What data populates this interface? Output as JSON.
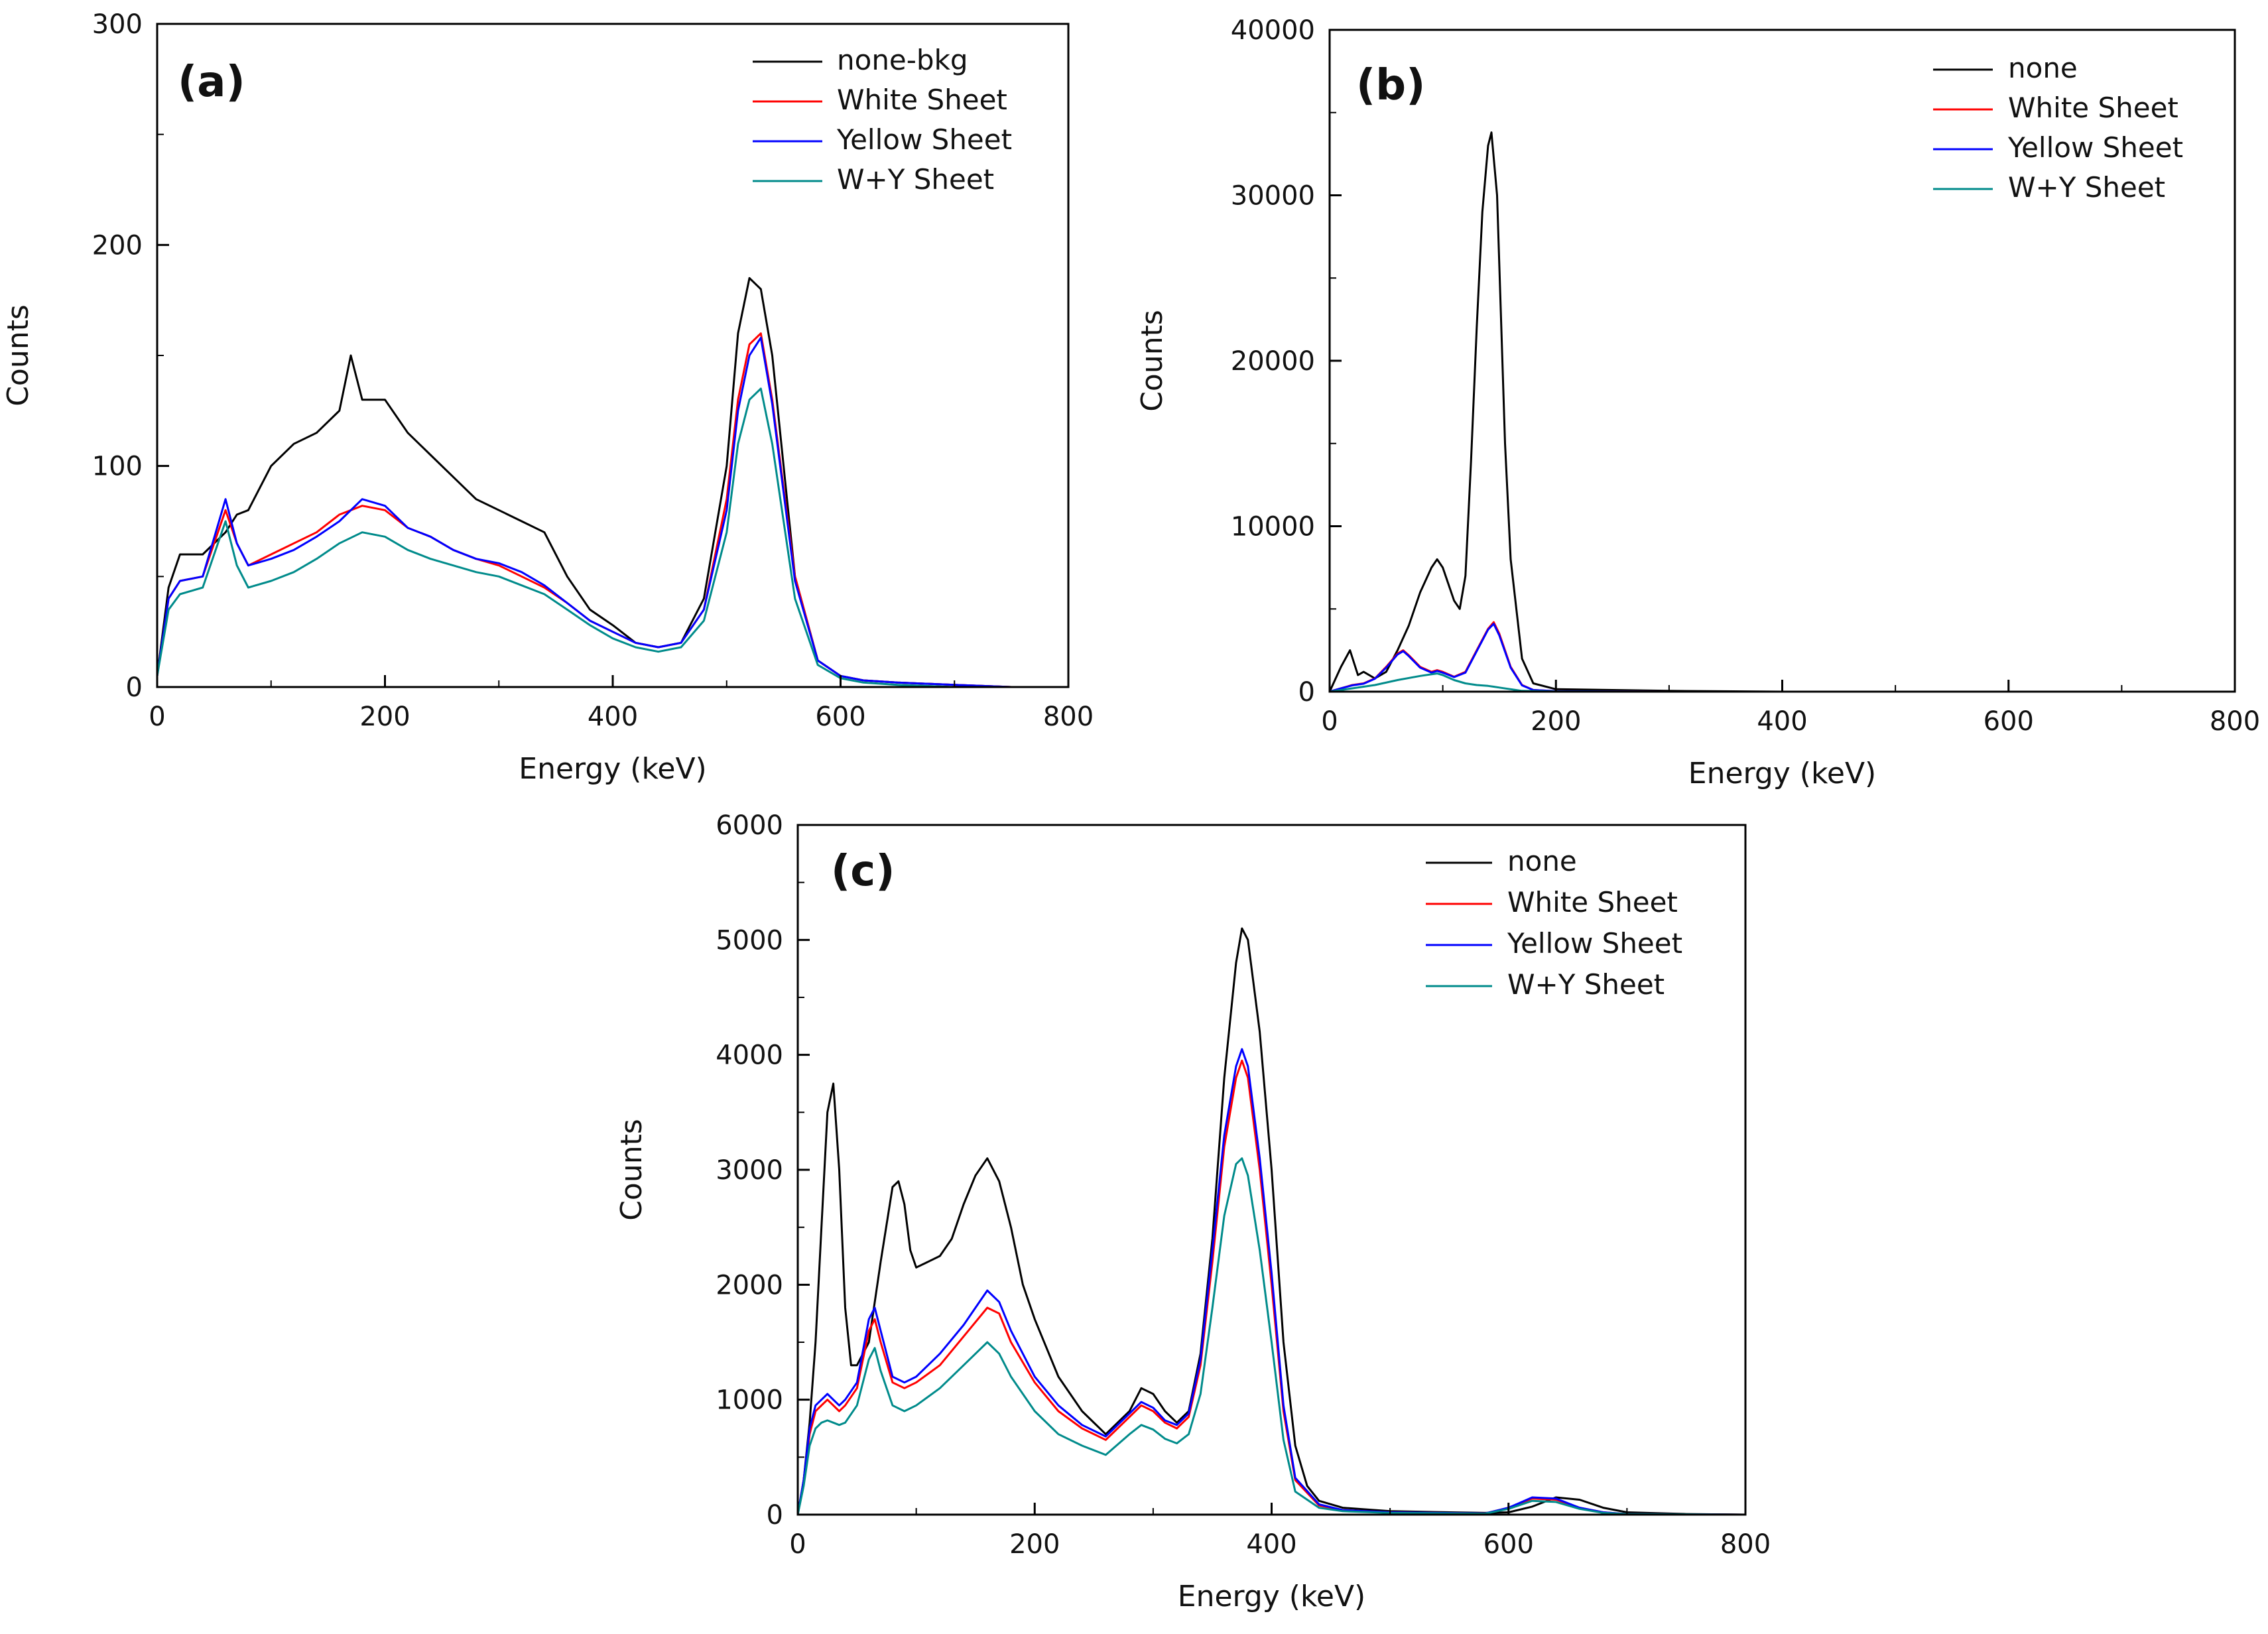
{
  "figure": {
    "series_colors": {
      "none": "#000000",
      "white": "#ff0000",
      "yellow": "#0000ff",
      "wy": "#008b8b"
    }
  },
  "chart_data": [
    {
      "panel": "(a)",
      "type": "line",
      "xlabel": "Energy (keV)",
      "ylabel": "Counts",
      "xlim": [
        0,
        800
      ],
      "ylim": [
        0,
        300
      ],
      "xticks": [
        0,
        200,
        400,
        600,
        800
      ],
      "yticks": [
        0,
        100,
        200,
        300
      ],
      "legend_position": "top-right",
      "series": [
        {
          "name": "none-bkg",
          "color": "#000000",
          "x": [
            0,
            10,
            20,
            40,
            60,
            70,
            80,
            100,
            120,
            140,
            160,
            170,
            180,
            200,
            220,
            240,
            260,
            280,
            300,
            320,
            340,
            360,
            380,
            400,
            420,
            440,
            460,
            480,
            500,
            510,
            520,
            530,
            540,
            550,
            560,
            580,
            600,
            620,
            650,
            700,
            750,
            800
          ],
          "y": [
            5,
            45,
            60,
            60,
            70,
            78,
            80,
            100,
            110,
            115,
            125,
            150,
            130,
            130,
            115,
            105,
            95,
            85,
            80,
            75,
            70,
            50,
            35,
            28,
            20,
            18,
            20,
            40,
            100,
            160,
            185,
            180,
            150,
            100,
            50,
            12,
            5,
            3,
            2,
            1,
            0,
            0
          ]
        },
        {
          "name": "White Sheet",
          "color": "#ff0000",
          "x": [
            0,
            10,
            20,
            40,
            60,
            70,
            80,
            100,
            120,
            140,
            160,
            180,
            200,
            220,
            240,
            260,
            280,
            300,
            320,
            340,
            360,
            380,
            400,
            420,
            440,
            460,
            480,
            500,
            510,
            520,
            530,
            540,
            550,
            560,
            580,
            600,
            620,
            650,
            700,
            750,
            800
          ],
          "y": [
            5,
            40,
            48,
            50,
            80,
            65,
            55,
            60,
            65,
            70,
            78,
            82,
            80,
            72,
            68,
            62,
            58,
            55,
            50,
            45,
            38,
            30,
            25,
            20,
            18,
            20,
            35,
            85,
            130,
            155,
            160,
            130,
            90,
            50,
            12,
            5,
            3,
            2,
            1,
            0,
            0
          ]
        },
        {
          "name": "Yellow Sheet",
          "color": "#0000ff",
          "x": [
            0,
            10,
            20,
            40,
            60,
            70,
            80,
            100,
            120,
            140,
            160,
            180,
            200,
            220,
            240,
            260,
            280,
            300,
            320,
            340,
            360,
            380,
            400,
            420,
            440,
            460,
            480,
            500,
            510,
            520,
            530,
            540,
            550,
            560,
            580,
            600,
            620,
            650,
            700,
            750,
            800
          ],
          "y": [
            5,
            40,
            48,
            50,
            85,
            65,
            55,
            58,
            62,
            68,
            75,
            85,
            82,
            72,
            68,
            62,
            58,
            56,
            52,
            46,
            38,
            30,
            25,
            20,
            18,
            20,
            35,
            80,
            125,
            150,
            158,
            128,
            88,
            48,
            12,
            5,
            3,
            2,
            1,
            0,
            0
          ]
        },
        {
          "name": "W+Y Sheet",
          "color": "#008b8b",
          "x": [
            0,
            10,
            20,
            40,
            60,
            70,
            80,
            100,
            120,
            140,
            160,
            180,
            200,
            220,
            240,
            260,
            280,
            300,
            320,
            340,
            360,
            380,
            400,
            420,
            440,
            460,
            480,
            500,
            510,
            520,
            530,
            540,
            550,
            560,
            580,
            600,
            620,
            650,
            700,
            750,
            800
          ],
          "y": [
            5,
            35,
            42,
            45,
            75,
            55,
            45,
            48,
            52,
            58,
            65,
            70,
            68,
            62,
            58,
            55,
            52,
            50,
            46,
            42,
            35,
            28,
            22,
            18,
            16,
            18,
            30,
            70,
            110,
            130,
            135,
            110,
            75,
            40,
            10,
            4,
            2,
            1,
            0,
            0,
            0
          ]
        }
      ]
    },
    {
      "panel": "(b)",
      "type": "line",
      "xlabel": "Energy (keV)",
      "ylabel": "Counts",
      "xlim": [
        0,
        800
      ],
      "ylim": [
        0,
        40000
      ],
      "xticks": [
        0,
        200,
        400,
        600,
        800
      ],
      "yticks": [
        0,
        10000,
        20000,
        30000,
        40000
      ],
      "legend_position": "top-right",
      "series": [
        {
          "name": "none",
          "color": "#000000",
          "x": [
            0,
            10,
            18,
            25,
            30,
            40,
            50,
            60,
            70,
            80,
            90,
            95,
            100,
            110,
            115,
            120,
            125,
            130,
            135,
            140,
            143,
            148,
            155,
            160,
            170,
            180,
            200,
            250,
            300,
            400,
            500,
            600,
            700,
            800
          ],
          "y": [
            0,
            1500,
            2500,
            1000,
            1200,
            800,
            1200,
            2500,
            4000,
            6000,
            7500,
            8000,
            7500,
            5500,
            5000,
            7000,
            14000,
            22000,
            29000,
            33000,
            33800,
            30000,
            15000,
            8000,
            2000,
            500,
            150,
            100,
            50,
            0,
            0,
            0,
            0,
            0
          ]
        },
        {
          "name": "White Sheet",
          "color": "#ff0000",
          "x": [
            0,
            10,
            20,
            30,
            40,
            50,
            60,
            65,
            70,
            80,
            90,
            95,
            100,
            110,
            120,
            130,
            140,
            145,
            150,
            160,
            170,
            180,
            200,
            300,
            800
          ],
          "y": [
            0,
            200,
            400,
            500,
            800,
            1500,
            2300,
            2500,
            2200,
            1500,
            1200,
            1300,
            1200,
            900,
            1200,
            2500,
            3800,
            4200,
            3500,
            1500,
            400,
            100,
            30,
            0,
            0
          ]
        },
        {
          "name": "Yellow Sheet",
          "color": "#0000ff",
          "x": [
            0,
            10,
            20,
            30,
            40,
            50,
            60,
            65,
            70,
            80,
            90,
            95,
            100,
            110,
            120,
            130,
            140,
            145,
            150,
            160,
            170,
            180,
            200,
            300,
            800
          ],
          "y": [
            0,
            200,
            380,
            480,
            780,
            1450,
            2250,
            2450,
            2150,
            1450,
            1150,
            1250,
            1150,
            880,
            1150,
            2450,
            3750,
            4100,
            3400,
            1450,
            380,
            100,
            30,
            0,
            0
          ]
        },
        {
          "name": "W+Y Sheet",
          "color": "#008b8b",
          "x": [
            0,
            10,
            20,
            40,
            60,
            80,
            90,
            95,
            100,
            110,
            120,
            130,
            140,
            145,
            150,
            160,
            170,
            200,
            300,
            800
          ],
          "y": [
            0,
            100,
            200,
            400,
            700,
            950,
            1050,
            1100,
            1000,
            700,
            500,
            400,
            350,
            300,
            250,
            150,
            50,
            10,
            0,
            0
          ]
        }
      ]
    },
    {
      "panel": "(c)",
      "type": "line",
      "xlabel": "Energy (keV)",
      "ylabel": "Counts",
      "xlim": [
        0,
        800
      ],
      "ylim": [
        0,
        6000
      ],
      "xticks": [
        0,
        200,
        400,
        600,
        800
      ],
      "yticks": [
        0,
        1000,
        2000,
        3000,
        4000,
        5000,
        6000
      ],
      "legend_position": "top-right",
      "series": [
        {
          "name": "none",
          "color": "#000000",
          "x": [
            0,
            5,
            10,
            15,
            20,
            25,
            30,
            35,
            40,
            45,
            50,
            60,
            70,
            80,
            85,
            90,
            95,
            100,
            110,
            120,
            130,
            140,
            150,
            160,
            170,
            180,
            190,
            200,
            220,
            240,
            260,
            280,
            290,
            300,
            310,
            320,
            330,
            340,
            350,
            360,
            370,
            375,
            380,
            390,
            400,
            410,
            420,
            430,
            440,
            460,
            500,
            550,
            580,
            600,
            620,
            640,
            660,
            680,
            700,
            750,
            800
          ],
          "y": [
            0,
            300,
            800,
            1500,
            2500,
            3500,
            3750,
            3000,
            1800,
            1300,
            1300,
            1500,
            2200,
            2850,
            2900,
            2700,
            2300,
            2150,
            2200,
            2250,
            2400,
            2700,
            2950,
            3100,
            2900,
            2500,
            2000,
            1700,
            1200,
            900,
            700,
            900,
            1100,
            1050,
            900,
            800,
            900,
            1400,
            2400,
            3800,
            4800,
            5100,
            5000,
            4200,
            3000,
            1500,
            600,
            250,
            120,
            60,
            30,
            20,
            15,
            20,
            70,
            150,
            130,
            60,
            20,
            5,
            0
          ]
        },
        {
          "name": "White Sheet",
          "color": "#ff0000",
          "x": [
            0,
            5,
            10,
            15,
            20,
            25,
            30,
            35,
            40,
            50,
            60,
            65,
            70,
            80,
            90,
            100,
            120,
            140,
            160,
            170,
            180,
            200,
            220,
            240,
            260,
            280,
            290,
            300,
            310,
            320,
            330,
            340,
            350,
            360,
            370,
            375,
            380,
            390,
            400,
            410,
            420,
            440,
            460,
            500,
            580,
            600,
            620,
            640,
            660,
            680,
            700,
            800
          ],
          "y": [
            0,
            300,
            700,
            900,
            950,
            1000,
            950,
            900,
            950,
            1100,
            1600,
            1700,
            1500,
            1150,
            1100,
            1150,
            1300,
            1550,
            1800,
            1750,
            1500,
            1150,
            900,
            750,
            650,
            850,
            950,
            900,
            800,
            750,
            850,
            1300,
            2200,
            3200,
            3800,
            3950,
            3800,
            3000,
            2000,
            900,
            300,
            80,
            40,
            20,
            10,
            60,
            140,
            130,
            60,
            20,
            5,
            0
          ]
        },
        {
          "name": "Yellow Sheet",
          "color": "#0000ff",
          "x": [
            0,
            5,
            10,
            15,
            20,
            25,
            30,
            35,
            40,
            50,
            60,
            65,
            70,
            80,
            90,
            100,
            120,
            140,
            160,
            170,
            180,
            200,
            220,
            240,
            260,
            280,
            290,
            300,
            310,
            320,
            330,
            340,
            350,
            360,
            370,
            375,
            380,
            390,
            400,
            410,
            420,
            440,
            460,
            500,
            580,
            600,
            620,
            640,
            660,
            680,
            700,
            800
          ],
          "y": [
            0,
            300,
            750,
            950,
            1000,
            1050,
            1000,
            950,
            1000,
            1150,
            1700,
            1800,
            1600,
            1200,
            1150,
            1200,
            1400,
            1650,
            1950,
            1850,
            1600,
            1200,
            950,
            780,
            680,
            880,
            980,
            930,
            820,
            780,
            880,
            1350,
            2300,
            3300,
            3900,
            4050,
            3900,
            3100,
            2100,
            950,
            320,
            90,
            40,
            20,
            10,
            60,
            150,
            140,
            60,
            20,
            5,
            0
          ]
        },
        {
          "name": "W+Y Sheet",
          "color": "#008b8b",
          "x": [
            0,
            5,
            10,
            15,
            20,
            25,
            30,
            35,
            40,
            50,
            60,
            65,
            70,
            80,
            90,
            100,
            120,
            140,
            160,
            170,
            180,
            200,
            220,
            240,
            260,
            280,
            290,
            300,
            310,
            320,
            330,
            340,
            350,
            360,
            370,
            375,
            380,
            390,
            400,
            410,
            420,
            440,
            460,
            500,
            580,
            600,
            620,
            640,
            660,
            680,
            700,
            800
          ],
          "y": [
            0,
            250,
            600,
            750,
            800,
            820,
            800,
            780,
            800,
            950,
            1350,
            1450,
            1250,
            950,
            900,
            950,
            1100,
            1300,
            1500,
            1400,
            1200,
            900,
            700,
            600,
            520,
            700,
            780,
            740,
            660,
            620,
            700,
            1050,
            1800,
            2600,
            3050,
            3100,
            2950,
            2300,
            1500,
            650,
            200,
            60,
            30,
            15,
            8,
            50,
            120,
            110,
            50,
            15,
            5,
            0
          ]
        }
      ]
    }
  ]
}
